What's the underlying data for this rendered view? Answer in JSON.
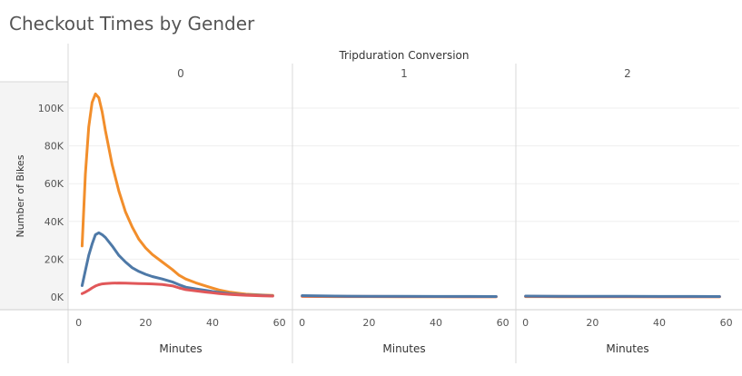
{
  "title": "Checkout Times by Gender",
  "chart_data": {
    "type": "line",
    "title": "Checkout Times by Gender",
    "column_header": "Tripduration Conversion",
    "ylabel": "Number of Bikes",
    "ylim": [
      0,
      108000
    ],
    "yticks": [
      0,
      20000,
      40000,
      60000,
      80000,
      100000
    ],
    "ytick_labels": [
      "0K",
      "20K",
      "40K",
      "60K",
      "80K",
      "100K"
    ],
    "xticks": [
      0,
      20,
      40,
      60
    ],
    "xtick_labels": [
      "0",
      "20",
      "40",
      "60"
    ],
    "colors": {
      "orange": "#f28e2b",
      "blue": "#4e79a7",
      "red": "#e15759"
    },
    "panels": [
      {
        "label": "0",
        "xlabel": "Minutes",
        "xlim": [
          -1,
          62
        ],
        "series": [
          {
            "color": "orange",
            "x": [
              1,
              2,
              3,
              4,
              5,
              6,
              7,
              8,
              10,
              12,
              14,
              16,
              18,
              20,
              22,
              25,
              28,
              30,
              32,
              35,
              38,
              40,
              42,
              45,
              48,
              50,
              55,
              58
            ],
            "y": [
              27000,
              65000,
              90000,
              103000,
              107500,
              105500,
              98000,
              88000,
              70000,
              56000,
              45000,
              37000,
              30500,
              26000,
              22500,
              18500,
              14500,
              11500,
              9500,
              7500,
              5800,
              4700,
              3700,
              2600,
              1900,
              1500,
              1000,
              800
            ]
          },
          {
            "color": "blue",
            "x": [
              1,
              2,
              3,
              4,
              5,
              6,
              7,
              8,
              10,
              12,
              14,
              16,
              18,
              20,
              22,
              25,
              28,
              30,
              32,
              35,
              38,
              40,
              42,
              45,
              48,
              50,
              55,
              58
            ],
            "y": [
              6000,
              14000,
              22000,
              28000,
              33000,
              34000,
              33000,
              31500,
              27000,
              22000,
              18500,
              15500,
              13500,
              12000,
              10800,
              9500,
              8000,
              6500,
              5200,
              4300,
              3500,
              2900,
              2400,
              1800,
              1300,
              1100,
              800,
              600
            ]
          },
          {
            "color": "red",
            "x": [
              1,
              2,
              3,
              4,
              5,
              6,
              7,
              8,
              10,
              12,
              14,
              16,
              18,
              20,
              22,
              25,
              28,
              30,
              32,
              35,
              38,
              40,
              42,
              45,
              48,
              50,
              55,
              58
            ],
            "y": [
              1800,
              2600,
              3600,
              4800,
              5800,
              6500,
              6900,
              7100,
              7300,
              7400,
              7300,
              7200,
              7100,
              7000,
              6900,
              6600,
              5900,
              4800,
              3900,
              3200,
              2600,
              2200,
              1800,
              1400,
              1100,
              900,
              600,
              500
            ]
          }
        ]
      },
      {
        "label": "1",
        "xlabel": "Minutes",
        "xlim": [
          -1,
          62
        ],
        "series": [
          {
            "color": "orange",
            "x": [
              0,
              5,
              10,
              20,
              30,
              40,
              50,
              58
            ],
            "y": [
              300,
              250,
              200,
              180,
              160,
              150,
              140,
              130
            ]
          },
          {
            "color": "red",
            "x": [
              0,
              5,
              10,
              20,
              30,
              40,
              50,
              58
            ],
            "y": [
              500,
              420,
              350,
              300,
              260,
              230,
              210,
              200
            ]
          },
          {
            "color": "blue",
            "x": [
              0,
              5,
              10,
              20,
              30,
              40,
              50,
              58
            ],
            "y": [
              700,
              600,
              500,
              400,
              350,
              300,
              280,
              260
            ]
          }
        ]
      },
      {
        "label": "2",
        "xlabel": "Minutes",
        "xlim": [
          -1,
          62
        ],
        "series": [
          {
            "color": "orange",
            "x": [
              0,
              5,
              10,
              20,
              30,
              40,
              50,
              58
            ],
            "y": [
              200,
              180,
              160,
              150,
              140,
              130,
              120,
              110
            ]
          },
          {
            "color": "red",
            "x": [
              0,
              5,
              10,
              20,
              30,
              40,
              50,
              58
            ],
            "y": [
              350,
              300,
              280,
              250,
              230,
              210,
              200,
              190
            ]
          },
          {
            "color": "blue",
            "x": [
              0,
              5,
              10,
              20,
              30,
              40,
              50,
              58
            ],
            "y": [
              500,
              450,
              400,
              350,
              320,
              300,
              280,
              260
            ]
          }
        ]
      }
    ]
  }
}
